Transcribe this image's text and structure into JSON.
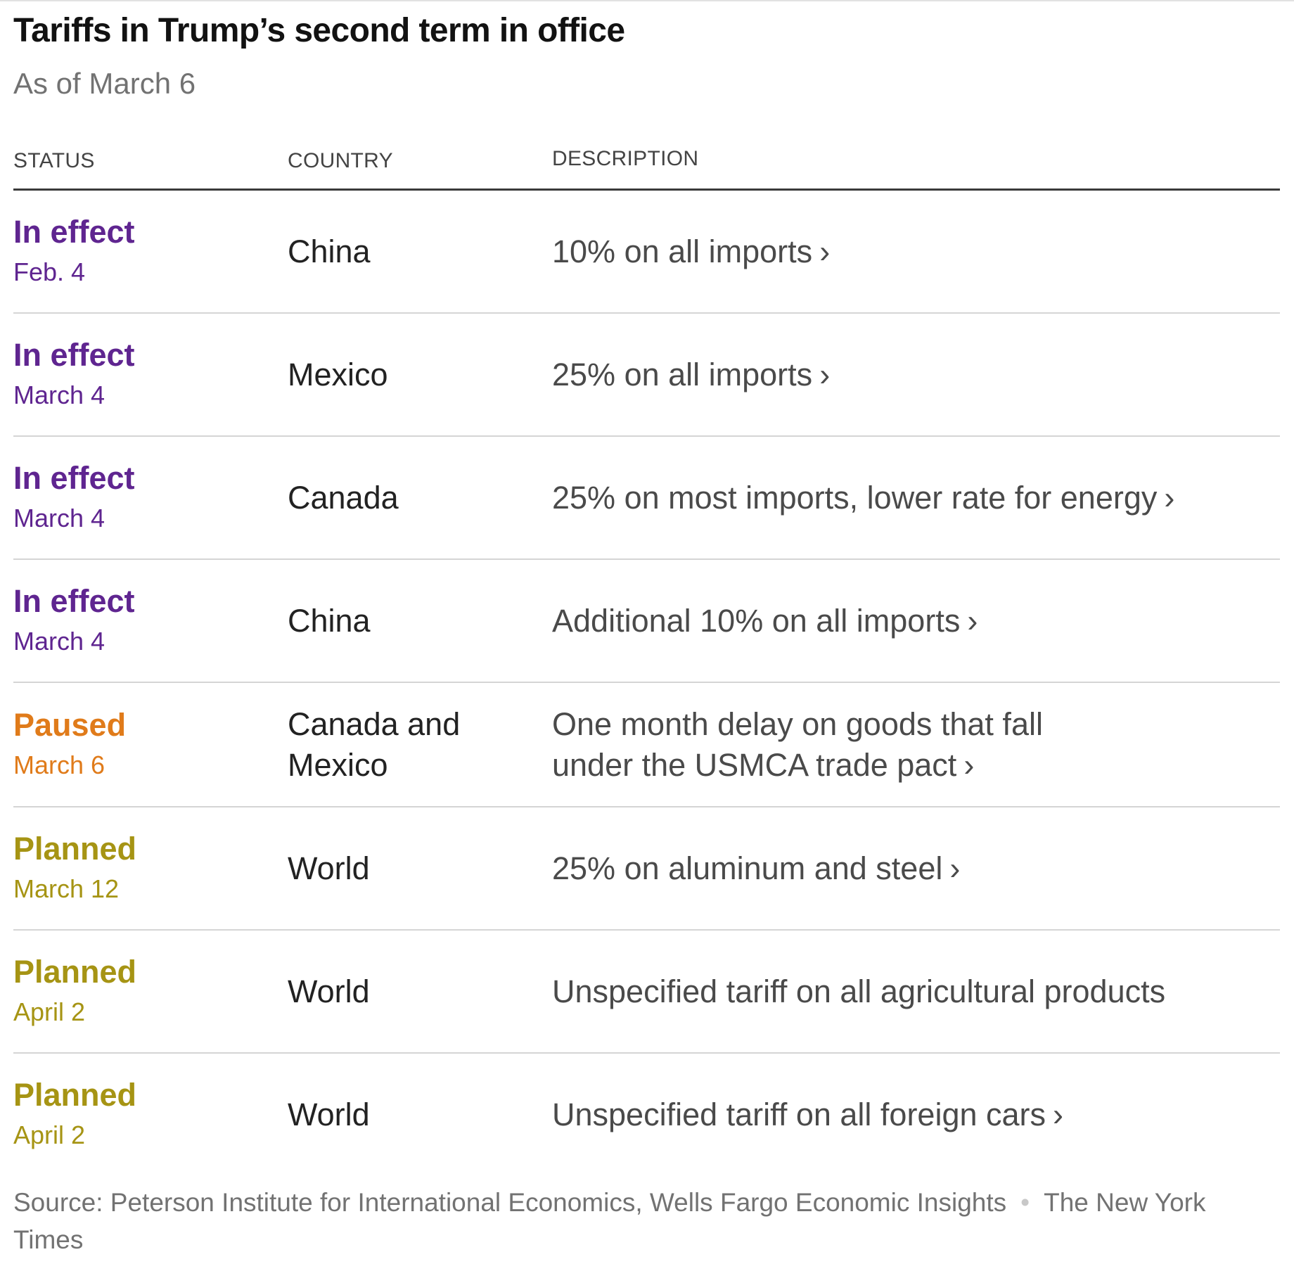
{
  "title": "Tariffs in Trump’s second term in office",
  "subtitle": "As of March 6",
  "headers": {
    "status": "STATUS",
    "country": "COUNTRY",
    "description": "DESCRIPTION"
  },
  "chevron": "›",
  "colors": {
    "in_effect": "#5f2590",
    "paused": "#e07b1a",
    "planned": "#a69414",
    "divider": "#d5d5d5",
    "header_rule": "#3a3a3a"
  },
  "rows": [
    {
      "status": "In effect",
      "date": "Feb. 4",
      "country": "China",
      "description": "10% on all imports"
    },
    {
      "status": "In effect",
      "date": "March 4",
      "country": "Mexico",
      "description": "25% on all imports"
    },
    {
      "status": "In effect",
      "date": "March 4",
      "country": "Canada",
      "description": "25% on most imports, lower rate for energy"
    },
    {
      "status": "In effect",
      "date": "March 4",
      "country": "China",
      "description": "Additional 10% on all imports"
    },
    {
      "status": "Paused",
      "date": "March 6",
      "country": "Canada and Mexico",
      "description": "One month delay on goods that fall under the USMCA trade pact"
    },
    {
      "status": "Planned",
      "date": "March 12",
      "country": "World",
      "description": "25% on aluminum and steel"
    },
    {
      "status": "Planned",
      "date": "April 2",
      "country": "World",
      "description": "Unspecified tariff on all agricultural products"
    },
    {
      "status": "Planned",
      "date": "April 2",
      "country": "World",
      "description": "Unspecified tariff on all foreign cars"
    }
  ],
  "footer": {
    "source": "Source: Peterson Institute for International Economics, Wells Fargo Economic Insights",
    "separator": "•",
    "credit": "The New York Times"
  }
}
